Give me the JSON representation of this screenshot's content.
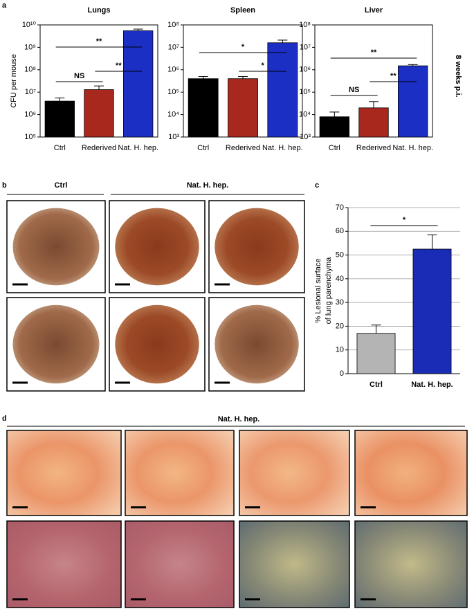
{
  "figure": {
    "panel_labels": [
      "a",
      "b",
      "c",
      "d"
    ],
    "side_label": "8 weeks p.i.",
    "b_headers": [
      "Ctrl",
      "Nat. H. hep."
    ],
    "d_header": "Nat. H. hep."
  },
  "chart_data": [
    {
      "type": "bar",
      "title": "Lungs",
      "ylabel": "CFU per mouse",
      "log_scale": true,
      "grid": false,
      "categories": [
        "Ctrl",
        "Rederived",
        "Nat. H. hep."
      ],
      "values": [
        4000000,
        13000000,
        5500000000
      ],
      "errors": [
        1500000,
        6000000,
        1000000000
      ],
      "colors": [
        "#000000",
        "#a8281e",
        "#1c2fc4"
      ],
      "ylim": [
        100000,
        10000000000
      ],
      "yticks": [
        {
          "value": 100000,
          "label": "10⁵"
        },
        {
          "value": 1000000,
          "label": "10⁶"
        },
        {
          "value": 10000000,
          "label": "10⁷"
        },
        {
          "value": 100000000,
          "label": "10⁸"
        },
        {
          "value": 1000000000,
          "label": "10⁹"
        },
        {
          "value": 10000000000,
          "label": "10¹⁰"
        }
      ],
      "annotations": [
        {
          "label": "NS",
          "pair": [
            0,
            1
          ]
        },
        {
          "label": "**",
          "pair": [
            0,
            2
          ]
        },
        {
          "label": "**",
          "pair": [
            1,
            2
          ]
        }
      ]
    },
    {
      "type": "bar",
      "title": "Spleen",
      "log_scale": true,
      "grid": false,
      "categories": [
        "Ctrl",
        "Rederived",
        "Nat. H. hep."
      ],
      "values": [
        400000,
        400000,
        16000000
      ],
      "errors": [
        100000,
        100000,
        5000000
      ],
      "colors": [
        "#000000",
        "#a8281e",
        "#1c2fc4"
      ],
      "ylim": [
        1000,
        100000000
      ],
      "yticks": [
        {
          "value": 1000,
          "label": "10³"
        },
        {
          "value": 10000,
          "label": "10⁴"
        },
        {
          "value": 100000,
          "label": "10⁵"
        },
        {
          "value": 1000000,
          "label": "10⁶"
        },
        {
          "value": 10000000,
          "label": "10⁷"
        },
        {
          "value": 100000000,
          "label": "10⁸"
        }
      ],
      "annotations": [
        {
          "label": "*",
          "pair": [
            0,
            2
          ]
        },
        {
          "label": "*",
          "pair": [
            1,
            2
          ]
        }
      ]
    },
    {
      "type": "bar",
      "title": "Liver",
      "log_scale": true,
      "grid": false,
      "categories": [
        "Ctrl",
        "Rederived",
        "Nat. H. hep."
      ],
      "values": [
        8000,
        20000,
        1500000
      ],
      "errors": [
        5000,
        18000,
        200000
      ],
      "colors": [
        "#000000",
        "#a8281e",
        "#1c2fc4"
      ],
      "ylim": [
        1000,
        100000000
      ],
      "yticks": [
        {
          "value": 1000,
          "label": "10³"
        },
        {
          "value": 10000,
          "label": "10⁴"
        },
        {
          "value": 100000,
          "label": "10⁵"
        },
        {
          "value": 1000000,
          "label": "10⁶"
        },
        {
          "value": 10000000,
          "label": "10⁷"
        },
        {
          "value": 100000000,
          "label": "10⁸"
        }
      ],
      "annotations": [
        {
          "label": "NS",
          "pair": [
            0,
            1
          ]
        },
        {
          "label": "**",
          "pair": [
            0,
            2
          ]
        },
        {
          "label": "**",
          "pair": [
            1,
            2
          ]
        }
      ]
    },
    {
      "type": "bar",
      "ylabel": [
        "% Lesional surface",
        "of lung parenchyma"
      ],
      "log_scale": false,
      "grid": true,
      "categories": [
        "Ctrl",
        "Nat. H. hep."
      ],
      "values": [
        17,
        52.5
      ],
      "errors": [
        3.5,
        6
      ],
      "colors": [
        "#b4b4b4",
        "#1a2bb5"
      ],
      "ylim": [
        0,
        70
      ],
      "yticks": [
        0,
        10,
        20,
        30,
        40,
        50,
        60,
        70
      ],
      "annotations": [
        {
          "label": "*",
          "pair": [
            0,
            1
          ]
        }
      ]
    }
  ]
}
